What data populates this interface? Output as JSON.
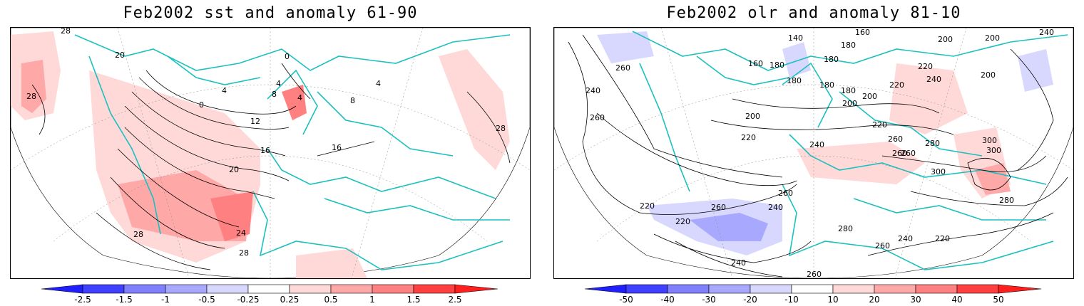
{
  "left_panel": {
    "title": "Feb2002 sst and anomaly 61-90",
    "contour_labels": [
      "28",
      "20",
      "28",
      "0",
      "4",
      "8",
      "4",
      "4",
      "0",
      "12",
      "16",
      "20",
      "24",
      "28",
      "28",
      "16",
      "8",
      "4",
      "28"
    ],
    "colorbar": {
      "ticks": [
        "-2.5",
        "-1.5",
        "-1",
        "-0.5",
        "-0.25",
        "0.25",
        "0.5",
        "1",
        "1.5",
        "2.5"
      ],
      "colors": [
        "#1f1fff",
        "#4040ff",
        "#8080ff",
        "#a8a8ff",
        "#d8d8ff",
        "#ffffff",
        "#ffd8d8",
        "#ffa8a8",
        "#ff8080",
        "#ff4040",
        "#ff1f1f"
      ]
    }
  },
  "right_panel": {
    "title": "Feb2002 olr and anomaly 81-10",
    "contour_labels": [
      "140",
      "160",
      "200",
      "200",
      "240",
      "260",
      "180",
      "160",
      "180",
      "180",
      "180",
      "180",
      "180",
      "200",
      "220",
      "240",
      "200",
      "220",
      "240",
      "260",
      "200",
      "220",
      "240",
      "260",
      "200",
      "220",
      "260",
      "280",
      "300",
      "300",
      "260",
      "300",
      "240",
      "260",
      "280",
      "280",
      "260",
      "220",
      "240",
      "260",
      "220",
      "220",
      "240",
      "260"
    ],
    "colorbar": {
      "ticks": [
        "-50",
        "-40",
        "-30",
        "-20",
        "-10",
        "10",
        "20",
        "30",
        "40",
        "50"
      ],
      "colors": [
        "#1f1fff",
        "#4040ff",
        "#8080ff",
        "#a8a8ff",
        "#d8d8ff",
        "#ffffff",
        "#ffd8d8",
        "#ffa8a8",
        "#ff8080",
        "#ff4040",
        "#ff1f1f"
      ]
    }
  }
}
